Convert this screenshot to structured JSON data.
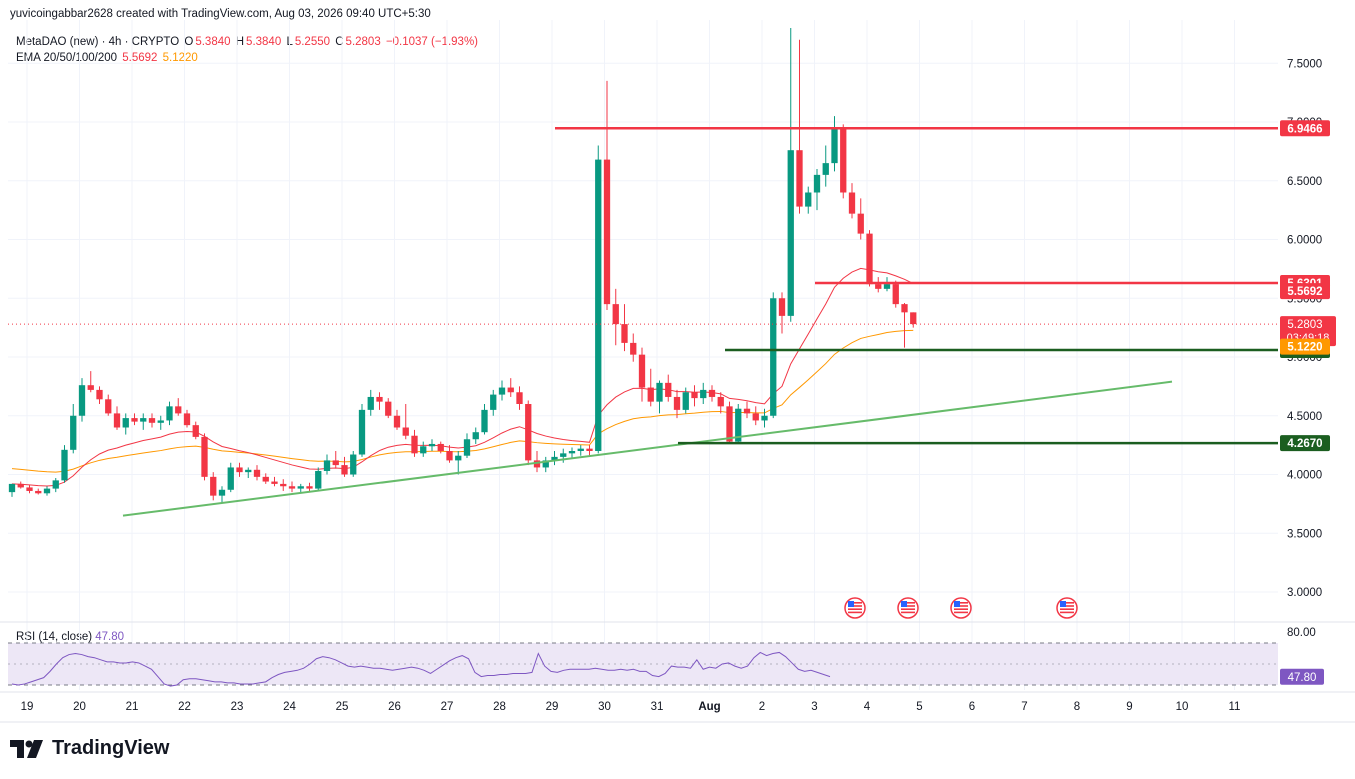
{
  "header": {
    "text": "yuvicoingabbar2628 created with TradingView.com, Aug 03, 2026 09:40 UTC+5:30"
  },
  "legend": {
    "symbol": "MetaDAO (new) · 4h · CRYPTO",
    "open_label": "O",
    "open": "5.3840",
    "high_label": "H",
    "high": "5.3840",
    "low_label": "L",
    "low": "5.2550",
    "close_label": "C",
    "close": "5.2803",
    "change": "−0.1037 (−1.93%)",
    "ema_label": "EMA 20/50/100/200",
    "ema20": "5.5692",
    "ema50": "5.1220"
  },
  "rsi_legend": {
    "label": "RSI (14, close)",
    "value": "47.80"
  },
  "brand": {
    "name": "TradingView"
  },
  "colors": {
    "up": "#089981",
    "down": "#f23645",
    "ema20": "#f23645",
    "ema50": "#ff9800",
    "trendline": "#66bb6a",
    "support": "#1b5e20",
    "rsi": "#7e57c2",
    "rsi_band": "#ede7f6"
  },
  "chart_data": {
    "type": "candlestick",
    "ylim": [
      2.7,
      7.8
    ],
    "yticks": [
      "7.5000",
      "7.0000",
      "6.5000",
      "6.0000",
      "5.5000",
      "5.0000",
      "4.5000",
      "4.0000",
      "3.5000",
      "3.0000"
    ],
    "xticks": [
      "19",
      "20",
      "21",
      "22",
      "23",
      "24",
      "25",
      "26",
      "27",
      "28",
      "29",
      "30",
      "31",
      "Aug",
      "2",
      "3",
      "4",
      "5",
      "6",
      "7",
      "8",
      "9",
      "10",
      "11"
    ],
    "candles": [
      [
        3.85,
        3.92,
        3.81,
        3.92
      ],
      [
        3.92,
        3.94,
        3.88,
        3.89
      ],
      [
        3.89,
        3.91,
        3.84,
        3.86
      ],
      [
        3.86,
        3.88,
        3.83,
        3.84
      ],
      [
        3.84,
        3.9,
        3.82,
        3.88
      ],
      [
        3.88,
        3.97,
        3.85,
        3.95
      ],
      [
        3.95,
        4.25,
        3.93,
        4.21
      ],
      [
        4.21,
        4.6,
        4.18,
        4.5
      ],
      [
        4.5,
        4.82,
        4.45,
        4.76
      ],
      [
        4.76,
        4.88,
        4.7,
        4.72
      ],
      [
        4.72,
        4.75,
        4.6,
        4.64
      ],
      [
        4.64,
        4.68,
        4.5,
        4.52
      ],
      [
        4.52,
        4.58,
        4.38,
        4.4
      ],
      [
        4.4,
        4.52,
        4.34,
        4.48
      ],
      [
        4.48,
        4.52,
        4.42,
        4.45
      ],
      [
        4.45,
        4.52,
        4.38,
        4.48
      ],
      [
        4.48,
        4.52,
        4.4,
        4.44
      ],
      [
        4.44,
        4.5,
        4.38,
        4.46
      ],
      [
        4.46,
        4.62,
        4.42,
        4.58
      ],
      [
        4.58,
        4.65,
        4.5,
        4.52
      ],
      [
        4.52,
        4.55,
        4.4,
        4.42
      ],
      [
        4.42,
        4.45,
        4.3,
        4.32
      ],
      [
        4.32,
        4.35,
        3.95,
        3.98
      ],
      [
        3.98,
        4.02,
        3.78,
        3.82
      ],
      [
        3.82,
        3.9,
        3.76,
        3.87
      ],
      [
        3.87,
        4.1,
        3.85,
        4.06
      ],
      [
        4.06,
        4.1,
        3.98,
        4.02
      ],
      [
        4.02,
        4.06,
        3.97,
        4.04
      ],
      [
        4.04,
        4.08,
        3.95,
        3.98
      ],
      [
        3.98,
        4.01,
        3.92,
        3.94
      ],
      [
        3.94,
        3.98,
        3.9,
        3.92
      ],
      [
        3.92,
        3.96,
        3.86,
        3.9
      ],
      [
        3.9,
        3.94,
        3.85,
        3.88
      ],
      [
        3.88,
        3.92,
        3.85,
        3.9
      ],
      [
        3.9,
        3.93,
        3.86,
        3.88
      ],
      [
        3.88,
        4.06,
        3.86,
        4.03
      ],
      [
        4.03,
        4.17,
        4.0,
        4.12
      ],
      [
        4.12,
        4.2,
        4.05,
        4.08
      ],
      [
        4.08,
        4.15,
        3.98,
        4.0
      ],
      [
        4.0,
        4.2,
        3.98,
        4.17
      ],
      [
        4.17,
        4.6,
        4.15,
        4.55
      ],
      [
        4.55,
        4.72,
        4.5,
        4.66
      ],
      [
        4.66,
        4.7,
        4.55,
        4.62
      ],
      [
        4.62,
        4.65,
        4.48,
        4.5
      ],
      [
        4.5,
        4.55,
        4.38,
        4.4
      ],
      [
        4.4,
        4.6,
        4.3,
        4.33
      ],
      [
        4.33,
        4.38,
        4.15,
        4.18
      ],
      [
        4.18,
        4.28,
        4.15,
        4.24
      ],
      [
        4.24,
        4.3,
        4.2,
        4.26
      ],
      [
        4.26,
        4.28,
        4.18,
        4.2
      ],
      [
        4.2,
        4.25,
        4.1,
        4.12
      ],
      [
        4.12,
        4.2,
        4.0,
        4.16
      ],
      [
        4.16,
        4.35,
        4.14,
        4.3
      ],
      [
        4.3,
        4.4,
        4.26,
        4.36
      ],
      [
        4.36,
        4.6,
        4.34,
        4.55
      ],
      [
        4.55,
        4.72,
        4.5,
        4.68
      ],
      [
        4.68,
        4.8,
        4.63,
        4.74
      ],
      [
        4.74,
        4.82,
        4.66,
        4.7
      ],
      [
        4.7,
        4.75,
        4.55,
        4.6
      ],
      [
        4.6,
        4.63,
        4.08,
        4.12
      ],
      [
        4.12,
        4.2,
        4.02,
        4.06
      ],
      [
        4.06,
        4.15,
        4.02,
        4.12
      ],
      [
        4.12,
        4.2,
        4.08,
        4.15
      ],
      [
        4.15,
        4.22,
        4.1,
        4.18
      ],
      [
        4.18,
        4.23,
        4.14,
        4.2
      ],
      [
        4.2,
        4.25,
        4.16,
        4.22
      ],
      [
        4.22,
        4.25,
        4.15,
        4.2
      ],
      [
        4.2,
        6.8,
        4.18,
        6.68
      ],
      [
        6.68,
        7.35,
        5.4,
        5.45
      ],
      [
        5.45,
        5.58,
        5.1,
        5.28
      ],
      [
        5.28,
        5.45,
        5.05,
        5.12
      ],
      [
        5.12,
        5.2,
        4.96,
        5.02
      ],
      [
        5.02,
        5.08,
        4.62,
        4.74
      ],
      [
        4.74,
        4.9,
        4.58,
        4.62
      ],
      [
        4.62,
        4.8,
        4.52,
        4.78
      ],
      [
        4.78,
        4.85,
        4.62,
        4.66
      ],
      [
        4.66,
        4.72,
        4.48,
        4.55
      ],
      [
        4.55,
        4.74,
        4.52,
        4.7
      ],
      [
        4.7,
        4.76,
        4.58,
        4.65
      ],
      [
        4.65,
        4.78,
        4.6,
        4.72
      ],
      [
        4.72,
        4.76,
        4.62,
        4.66
      ],
      [
        4.66,
        4.7,
        4.52,
        4.58
      ],
      [
        4.58,
        4.62,
        4.26,
        4.28
      ],
      [
        4.28,
        4.6,
        4.26,
        4.56
      ],
      [
        4.56,
        4.62,
        4.48,
        4.52
      ],
      [
        4.52,
        4.58,
        4.42,
        4.46
      ],
      [
        4.46,
        4.56,
        4.4,
        4.5
      ],
      [
        4.5,
        5.55,
        4.48,
        5.5
      ],
      [
        5.5,
        5.55,
        5.2,
        5.35
      ],
      [
        5.35,
        7.8,
        5.3,
        6.76
      ],
      [
        6.76,
        7.7,
        6.22,
        6.28
      ],
      [
        6.28,
        6.45,
        6.22,
        6.4
      ],
      [
        6.4,
        6.6,
        6.25,
        6.55
      ],
      [
        6.55,
        6.8,
        6.45,
        6.65
      ],
      [
        6.65,
        7.05,
        6.58,
        6.95
      ],
      [
        6.95,
        6.98,
        6.35,
        6.4
      ],
      [
        6.4,
        6.48,
        6.18,
        6.22
      ],
      [
        6.22,
        6.35,
        6.0,
        6.05
      ],
      [
        6.05,
        6.08,
        5.6,
        5.62
      ],
      [
        5.62,
        5.68,
        5.55,
        5.58
      ],
      [
        5.58,
        5.68,
        5.56,
        5.62
      ],
      [
        5.62,
        5.65,
        5.42,
        5.45
      ],
      [
        5.45,
        5.46,
        5.08,
        5.38
      ],
      [
        5.38,
        5.38,
        5.25,
        5.28
      ]
    ],
    "horizontal_levels": [
      {
        "value": 6.9466,
        "label": "6.9466",
        "color": "red"
      },
      {
        "value": 5.6301,
        "label": "5.6301",
        "color": "red"
      },
      {
        "value": 5.0592,
        "label": "5.0592",
        "color": "darkgreen"
      },
      {
        "value": 4.267,
        "label": "4.2670",
        "color": "darkgreen"
      }
    ],
    "trendline": {
      "start": [
        22,
        3.65
      ],
      "end": [
        11,
        4.79
      ]
    },
    "last_price": {
      "value": 5.2803,
      "label": "5.2803",
      "countdown": "03:49:18"
    },
    "ema_tags": [
      {
        "value": 5.5692,
        "label": "5.5692",
        "color": "red"
      },
      {
        "value": 5.122,
        "label": "5.1220",
        "color": "orange"
      }
    ],
    "rsi": {
      "levels": [
        "80.00",
        "40.00"
      ],
      "value_label": "47.80",
      "values": [
        41,
        40,
        41,
        43,
        45,
        47,
        53,
        60,
        66,
        69,
        70,
        69,
        67,
        66,
        64,
        62,
        62,
        61,
        61,
        62,
        61,
        58,
        55,
        48,
        41,
        39,
        40,
        45,
        46,
        46,
        45,
        44,
        43,
        43,
        42,
        42,
        41,
        41,
        41,
        42,
        43,
        47,
        50,
        52,
        53,
        54,
        56,
        60,
        65,
        67,
        66,
        64,
        61,
        58,
        57,
        58,
        57,
        56,
        56,
        55,
        54,
        55,
        56,
        57,
        56,
        54,
        51,
        55,
        59,
        63,
        66,
        68,
        65,
        52,
        48,
        49,
        49,
        50,
        50,
        51,
        51,
        51,
        52,
        70,
        58,
        53,
        52,
        54,
        55,
        55,
        55,
        55,
        56,
        55,
        54,
        54,
        55,
        54,
        55,
        53,
        53,
        49,
        48,
        51,
        58,
        57,
        57,
        56,
        64,
        55,
        57,
        56,
        60,
        61,
        58,
        56,
        58,
        66,
        71,
        68,
        70,
        71,
        67,
        61,
        55,
        53,
        54,
        52,
        50,
        48
      ]
    },
    "event_icons": 4
  }
}
